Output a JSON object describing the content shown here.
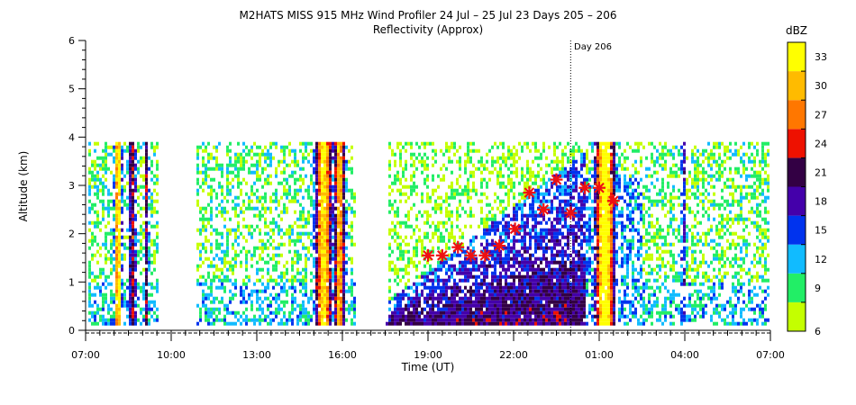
{
  "title": "M2HATS MISS 915 MHz Wind Profiler  24 Jul – 25 Jul 23 Days 205 – 206",
  "subtitle": "Reflectivity (Approx)",
  "day_marker_label": "Day 206",
  "chart_data": {
    "type": "heatmap",
    "xlabel": "Time (UT)",
    "ylabel": "Altitude (km)",
    "x_tick_labels": [
      "07:00",
      "10:00",
      "13:00",
      "16:00",
      "19:00",
      "22:00",
      "01:00",
      "04:00",
      "07:00"
    ],
    "x_range_hours": [
      7,
      31
    ],
    "y_tick_labels": [
      "0",
      "1",
      "2",
      "3",
      "4",
      "5",
      "6"
    ],
    "ylim": [
      0,
      6
    ],
    "day_boundary_hour": 24,
    "colorbar": {
      "unit": "dBZ",
      "tick_labels": [
        "6",
        "9",
        "12",
        "15",
        "18",
        "21",
        "24",
        "27",
        "30",
        "33"
      ],
      "colors": [
        "#c4ff00",
        "#22ee66",
        "#11bbff",
        "#0033ee",
        "#4400aa",
        "#330044",
        "#ee1100",
        "#ff7700",
        "#ffbb00",
        "#ffff00"
      ]
    },
    "markers_label": "",
    "markers": [
      {
        "x": 19.0,
        "y": 1.55
      },
      {
        "x": 19.5,
        "y": 1.55
      },
      {
        "x": 20.05,
        "y": 1.72
      },
      {
        "x": 20.5,
        "y": 1.55
      },
      {
        "x": 21.0,
        "y": 1.55
      },
      {
        "x": 21.5,
        "y": 1.75
      },
      {
        "x": 22.05,
        "y": 2.1
      },
      {
        "x": 22.55,
        "y": 2.85
      },
      {
        "x": 23.05,
        "y": 2.5
      },
      {
        "x": 23.5,
        "y": 3.12
      },
      {
        "x": 24.0,
        "y": 2.43
      },
      {
        "x": 24.5,
        "y": 2.95
      },
      {
        "x": 25.0,
        "y": 2.95
      },
      {
        "x": 25.5,
        "y": 2.68
      }
    ],
    "marker_color": "#ee1111"
  }
}
